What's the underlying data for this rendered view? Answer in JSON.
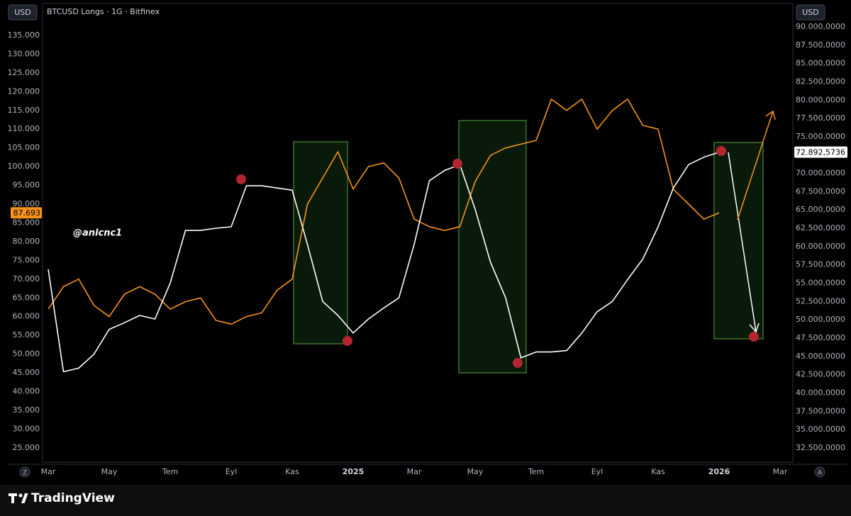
{
  "chart_data": {
    "type": "line",
    "title": "BTCUSD Longs · 1G · Bitfinex",
    "y_unit": "USD",
    "y2_unit": "USD",
    "annotation": "@anlcnc1",
    "footer": "TradingView",
    "buttons": [
      "Z",
      "A"
    ],
    "categories": [
      "Mar",
      null,
      null,
      null,
      "May",
      null,
      null,
      null,
      "Tem",
      null,
      null,
      null,
      "Eyl",
      null,
      null,
      null,
      "Kas",
      null,
      null,
      null,
      "2025",
      null,
      null,
      null,
      "Mar",
      null,
      null,
      null,
      "May",
      null,
      null,
      null,
      "Tem",
      null,
      null,
      null,
      "Eyl",
      null,
      null,
      null,
      "Kas",
      null,
      null,
      null,
      "2026",
      null,
      null,
      null,
      "Mar"
    ],
    "series": [
      {
        "name": "BTCUSD",
        "color": "#f7931a",
        "axis": "y",
        "values": [
          62000,
          68000,
          70000,
          63000,
          60000,
          66000,
          68000,
          66000,
          62000,
          64000,
          65000,
          59000,
          58000,
          60000,
          61000,
          67000,
          70000,
          90000,
          97000,
          104000,
          94000,
          100000,
          101000,
          97000,
          86000,
          84000,
          83000,
          84000,
          96000,
          103000,
          105000,
          106000,
          107000,
          118000,
          115000,
          118000,
          110000,
          115000,
          118000,
          111000,
          110000,
          94000,
          90000,
          86000,
          87693,
          null,
          null,
          null,
          null
        ],
        "last_value_label": "87.693"
      },
      {
        "name": "BTCUSD Longs",
        "color": "#ffffff",
        "axis": "y2",
        "values": [
          56900,
          42900,
          43400,
          45300,
          48700,
          49600,
          50600,
          50100,
          55000,
          62200,
          62200,
          62500,
          62700,
          68300,
          68300,
          68000,
          67700,
          60300,
          52500,
          50600,
          48200,
          50100,
          51600,
          53000,
          60300,
          69000,
          70400,
          71200,
          65100,
          57900,
          53000,
          44800,
          45600,
          45600,
          45800,
          48200,
          51100,
          52500,
          55500,
          58300,
          62700,
          68000,
          71200,
          72200,
          72892.5736,
          null,
          null,
          null,
          null
        ],
        "last_value_label": "72.892,5736"
      }
    ],
    "ylim": [
      21200,
      143500
    ],
    "yticks": [
      {
        "value": 25000,
        "label": "25.000"
      },
      {
        "value": 30000,
        "label": "30.000"
      },
      {
        "value": 35000,
        "label": "35.000"
      },
      {
        "value": 40000,
        "label": "40.000"
      },
      {
        "value": 45000,
        "label": "45.000"
      },
      {
        "value": 50000,
        "label": "50.000"
      },
      {
        "value": 55000,
        "label": "55.000"
      },
      {
        "value": 60000,
        "label": "60.000"
      },
      {
        "value": 65000,
        "label": "65.000"
      },
      {
        "value": 70000,
        "label": "70.000"
      },
      {
        "value": 75000,
        "label": "75.000"
      },
      {
        "value": 80000,
        "label": "80.000"
      },
      {
        "value": 85000,
        "label": "85.000"
      },
      {
        "value": 90000,
        "label": "90.000"
      },
      {
        "value": 95000,
        "label": "95.000"
      },
      {
        "value": 100000,
        "label": "100.000"
      },
      {
        "value": 105000,
        "label": "105.000"
      },
      {
        "value": 110000,
        "label": "110.000"
      },
      {
        "value": 115000,
        "label": "115.000"
      },
      {
        "value": 120000,
        "label": "120.000"
      },
      {
        "value": 125000,
        "label": "125.000"
      },
      {
        "value": 130000,
        "label": "130.000"
      },
      {
        "value": 135000,
        "label": "135.000"
      }
    ],
    "y2lim": [
      30560,
      93190
    ],
    "y2ticks": [
      {
        "value": 32500,
        "label": "32.500,0000"
      },
      {
        "value": 35000,
        "label": "35.000,0000"
      },
      {
        "value": 37500,
        "label": "37.500,0000"
      },
      {
        "value": 40000,
        "label": "40.000,0000"
      },
      {
        "value": 42500,
        "label": "42.500,0000"
      },
      {
        "value": 45000,
        "label": "45.000,0000"
      },
      {
        "value": 47500,
        "label": "47.500,0000"
      },
      {
        "value": 50000,
        "label": "50.000,0000"
      },
      {
        "value": 52500,
        "label": "52.500,0000"
      },
      {
        "value": 55000,
        "label": "55.000,0000"
      },
      {
        "value": 57500,
        "label": "57.500,0000"
      },
      {
        "value": 60000,
        "label": "60.000,0000"
      },
      {
        "value": 62500,
        "label": "62.500,0000"
      },
      {
        "value": 65000,
        "label": "65.000,0000"
      },
      {
        "value": 67500,
        "label": "67.500,0000"
      },
      {
        "value": 70000,
        "label": "70.000,0000"
      },
      {
        "value": 72500,
        "label": "72.500,0000"
      },
      {
        "value": 75000,
        "label": "75.000,0000"
      },
      {
        "value": 77500,
        "label": "77.500,0000"
      },
      {
        "value": 80000,
        "label": "80.000,0000"
      },
      {
        "value": 82500,
        "label": "82.500,0000"
      },
      {
        "value": 85000,
        "label": "85.000,0000"
      },
      {
        "value": 87500,
        "label": "87.500,0000"
      },
      {
        "value": 90000,
        "label": "90.000,0000"
      }
    ],
    "grid": false
  }
}
